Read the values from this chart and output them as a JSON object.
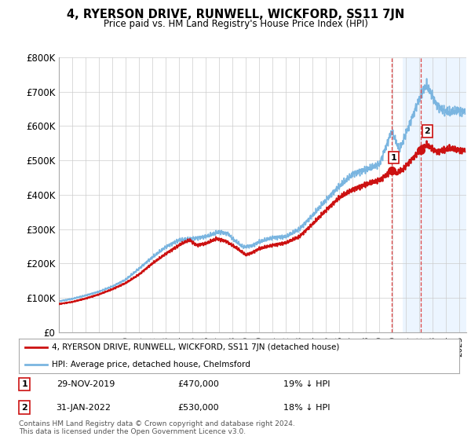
{
  "title": "4, RYERSON DRIVE, RUNWELL, WICKFORD, SS11 7JN",
  "subtitle": "Price paid vs. HM Land Registry's House Price Index (HPI)",
  "ylabel_ticks": [
    "£0",
    "£100K",
    "£200K",
    "£300K",
    "£400K",
    "£500K",
    "£600K",
    "£700K",
    "£800K"
  ],
  "ylim": [
    0,
    800000
  ],
  "xlim_start": 1995.0,
  "xlim_end": 2025.5,
  "hpi_color": "#7ab5e0",
  "price_color": "#cc1111",
  "marker1_date": 2019.92,
  "marker1_price": 470000,
  "marker2_date": 2022.08,
  "marker2_price": 530000,
  "vline_color": "#dd4444",
  "legend1": "4, RYERSON DRIVE, RUNWELL, WICKFORD, SS11 7JN (detached house)",
  "legend2": "HPI: Average price, detached house, Chelmsford",
  "note1_date": "29-NOV-2019",
  "note1_price": "£470,000",
  "note1_hpi": "19% ↓ HPI",
  "note2_date": "31-JAN-2022",
  "note2_price": "£530,000",
  "note2_hpi": "18% ↓ HPI",
  "footer": "Contains HM Land Registry data © Crown copyright and database right 2024.\nThis data is licensed under the Open Government Licence v3.0.",
  "bg_color": "#ffffff",
  "grid_color": "#cccccc",
  "highlight_bg": "#ddeeff"
}
